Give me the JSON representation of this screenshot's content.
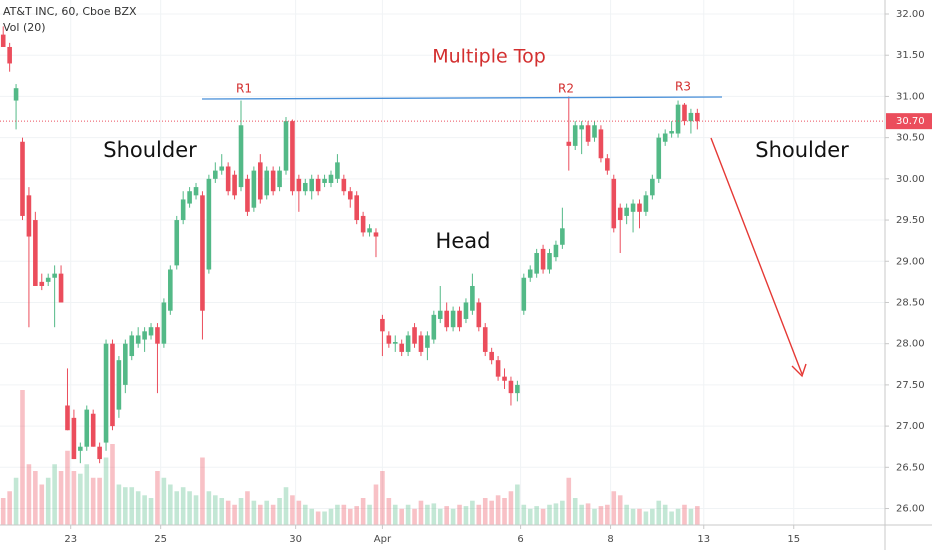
{
  "chart_data": {
    "type": "candlestick",
    "header": "AT&T INC, 60, Cboe BZX",
    "volume_label": "Vol (20)",
    "annotations": {
      "pattern": "Multiple Top",
      "r1": "R1",
      "r2": "R2",
      "r3": "R3",
      "left_shoulder": "Shoulder",
      "head": "Head",
      "right_shoulder": "Shoulder"
    },
    "up_color": "#53b987",
    "down_color": "#eb4d5c",
    "ylim": [
      25.8,
      32.17
    ],
    "yticks": [
      {
        "value": 32,
        "label": "32.00"
      },
      {
        "value": 31.5,
        "label": "31.50"
      },
      {
        "value": 31,
        "label": "31.00"
      },
      {
        "value": 30.5,
        "label": "30.50"
      },
      {
        "value": 30,
        "label": "30.00"
      },
      {
        "value": 29.5,
        "label": "29.50"
      },
      {
        "value": 29,
        "label": "29.00"
      },
      {
        "value": 28.5,
        "label": "28.50"
      },
      {
        "value": 28,
        "label": "28.00"
      },
      {
        "value": 27.5,
        "label": "27.50"
      },
      {
        "value": 27,
        "label": "27.00"
      },
      {
        "value": 26.5,
        "label": "26.50"
      },
      {
        "value": 26,
        "label": "26.00"
      }
    ],
    "xlim": [
      -0.5,
      137.2
    ],
    "xticks": [
      {
        "value": 10.5,
        "label": "23"
      },
      {
        "value": 24.5,
        "label": "25"
      },
      {
        "value": 45.5,
        "label": "30"
      },
      {
        "value": 59,
        "label": "Apr"
      },
      {
        "value": 80.5,
        "label": "6"
      },
      {
        "value": 94.5,
        "label": "8"
      },
      {
        "value": 109,
        "label": "13"
      },
      {
        "value": 123,
        "label": "15"
      }
    ],
    "grid": true,
    "last_price": {
      "value": 30.7,
      "label": "30.70"
    },
    "ohlc": [
      [
        31.75,
        31.85,
        31.6,
        31.6
      ],
      [
        31.6,
        31.65,
        31.3,
        31.4
      ],
      [
        30.95,
        31.15,
        30.6,
        31.1
      ],
      [
        30.45,
        30.5,
        29.5,
        29.55
      ],
      [
        29.8,
        29.9,
        28.2,
        29.3
      ],
      [
        29.5,
        29.6,
        28.7,
        28.7
      ],
      [
        28.75,
        28.85,
        28.65,
        28.7
      ],
      [
        28.75,
        28.85,
        28.7,
        28.8
      ],
      [
        28.8,
        28.95,
        28.2,
        28.85
      ],
      [
        28.85,
        28.95,
        28.5,
        28.5
      ],
      [
        27.25,
        27.7,
        26.95,
        26.95
      ],
      [
        27.1,
        27.2,
        26.6,
        26.6
      ],
      [
        26.7,
        26.8,
        26.55,
        26.75
      ],
      [
        26.75,
        27.25,
        26.7,
        27.2
      ],
      [
        27.15,
        27.2,
        26.75,
        26.75
      ],
      [
        26.75,
        26.8,
        26.55,
        26.6
      ],
      [
        26.8,
        28.05,
        26.7,
        28.0
      ],
      [
        28.0,
        28.05,
        26.95,
        27.0
      ],
      [
        27.2,
        27.85,
        27.1,
        27.8
      ],
      [
        27.5,
        28.05,
        27.4,
        28.0
      ],
      [
        27.85,
        28.15,
        27.8,
        28.1
      ],
      [
        28.0,
        28.2,
        27.95,
        28.1
      ],
      [
        28.05,
        28.2,
        27.9,
        28.15
      ],
      [
        28.1,
        28.25,
        28.05,
        28.2
      ],
      [
        28.2,
        28.25,
        27.4,
        28.0
      ],
      [
        28.0,
        28.55,
        27.95,
        28.5
      ],
      [
        28.4,
        28.95,
        28.35,
        28.9
      ],
      [
        28.95,
        29.55,
        28.9,
        29.5
      ],
      [
        29.5,
        29.85,
        29.45,
        29.75
      ],
      [
        29.7,
        29.9,
        29.65,
        29.85
      ],
      [
        29.8,
        29.95,
        29.75,
        29.9
      ],
      [
        29.8,
        29.85,
        28.05,
        28.4
      ],
      [
        28.9,
        30.05,
        28.85,
        30.0
      ],
      [
        30.0,
        30.2,
        29.95,
        30.1
      ],
      [
        30.1,
        30.3,
        30.05,
        30.15
      ],
      [
        30.15,
        30.2,
        29.8,
        29.85
      ],
      [
        30.05,
        30.1,
        29.75,
        29.8
      ],
      [
        29.9,
        30.95,
        29.85,
        30.65
      ],
      [
        30.0,
        30.05,
        29.55,
        29.6
      ],
      [
        29.65,
        30.15,
        29.6,
        30.1
      ],
      [
        30.2,
        30.3,
        29.7,
        29.75
      ],
      [
        29.8,
        30.15,
        29.75,
        30.1
      ],
      [
        30.1,
        30.15,
        29.8,
        29.85
      ],
      [
        29.9,
        30.15,
        29.85,
        30.1
      ],
      [
        30.1,
        30.75,
        30.05,
        30.7
      ],
      [
        30.7,
        30.72,
        29.8,
        29.85
      ],
      [
        30.0,
        30.05,
        29.6,
        29.85
      ],
      [
        29.85,
        30.0,
        29.8,
        29.95
      ],
      [
        29.85,
        30.05,
        29.75,
        30.0
      ],
      [
        30.0,
        30.05,
        29.8,
        29.85
      ],
      [
        29.95,
        30.05,
        29.9,
        30.0
      ],
      [
        29.95,
        30.1,
        29.9,
        30.05
      ],
      [
        30.0,
        30.3,
        29.95,
        30.2
      ],
      [
        30.0,
        30.05,
        29.8,
        29.85
      ],
      [
        29.85,
        29.9,
        29.65,
        29.75
      ],
      [
        29.8,
        29.85,
        29.45,
        29.5
      ],
      [
        29.55,
        29.6,
        29.3,
        29.35
      ],
      [
        29.35,
        29.45,
        29.3,
        29.4
      ],
      [
        29.35,
        29.4,
        29.05,
        29.3
      ],
      [
        28.3,
        28.35,
        27.85,
        28.15
      ],
      [
        28.1,
        28.15,
        27.95,
        28.0
      ],
      [
        28.0,
        28.1,
        27.9,
        28.02
      ],
      [
        28.0,
        28.05,
        27.85,
        27.9
      ],
      [
        27.9,
        28.15,
        27.85,
        28.1
      ],
      [
        28.2,
        28.25,
        27.95,
        28.0
      ],
      [
        28.1,
        28.15,
        27.85,
        27.9
      ],
      [
        27.95,
        28.15,
        27.8,
        28.1
      ],
      [
        28.05,
        28.4,
        28.0,
        28.35
      ],
      [
        28.3,
        28.7,
        28.25,
        28.4
      ],
      [
        28.4,
        28.5,
        28.15,
        28.2
      ],
      [
        28.2,
        28.45,
        28.15,
        28.4
      ],
      [
        28.4,
        28.45,
        28.15,
        28.2
      ],
      [
        28.3,
        28.55,
        28.25,
        28.5
      ],
      [
        28.4,
        28.85,
        28.35,
        28.7
      ],
      [
        28.5,
        28.55,
        28.15,
        28.2
      ],
      [
        28.2,
        28.25,
        27.85,
        27.9
      ],
      [
        27.9,
        27.95,
        27.75,
        27.8
      ],
      [
        27.8,
        27.85,
        27.55,
        27.6
      ],
      [
        27.6,
        27.7,
        27.45,
        27.55
      ],
      [
        27.55,
        27.6,
        27.25,
        27.4
      ],
      [
        27.4,
        27.55,
        27.3,
        27.5
      ],
      [
        28.4,
        28.85,
        28.35,
        28.8
      ],
      [
        28.8,
        28.95,
        28.75,
        28.9
      ],
      [
        28.85,
        29.15,
        28.8,
        29.1
      ],
      [
        29.15,
        29.2,
        28.85,
        28.9
      ],
      [
        28.9,
        29.15,
        28.85,
        29.1
      ],
      [
        29.05,
        29.25,
        29.0,
        29.2
      ],
      [
        29.2,
        29.65,
        29.15,
        29.4
      ],
      [
        30.45,
        31.0,
        30.1,
        30.4
      ],
      [
        30.4,
        30.7,
        30.35,
        30.65
      ],
      [
        30.6,
        30.7,
        30.3,
        30.65
      ],
      [
        30.65,
        30.7,
        30.4,
        30.45
      ],
      [
        30.5,
        30.7,
        30.45,
        30.65
      ],
      [
        30.6,
        30.65,
        30.2,
        30.25
      ],
      [
        30.25,
        30.3,
        30.05,
        30.1
      ],
      [
        30.0,
        30.05,
        29.35,
        29.4
      ],
      [
        29.65,
        29.7,
        29.1,
        29.5
      ],
      [
        29.55,
        29.7,
        29.45,
        29.65
      ],
      [
        29.6,
        29.75,
        29.35,
        29.7
      ],
      [
        29.7,
        29.75,
        29.4,
        29.6
      ],
      [
        29.6,
        29.85,
        29.55,
        29.8
      ],
      [
        29.8,
        30.05,
        29.75,
        30.0
      ],
      [
        30.0,
        30.55,
        29.95,
        30.5
      ],
      [
        30.45,
        30.6,
        30.4,
        30.55
      ],
      [
        30.55,
        30.7,
        30.5,
        30.58
      ],
      [
        30.55,
        30.95,
        30.5,
        30.9
      ],
      [
        30.9,
        30.92,
        30.65,
        30.7
      ],
      [
        30.7,
        30.85,
        30.55,
        30.8
      ],
      [
        30.8,
        30.85,
        30.6,
        30.7
      ]
    ],
    "volume_lim": [
      0,
      100
    ],
    "volume": [
      20,
      25,
      35,
      100,
      45,
      40,
      30,
      35,
      45,
      40,
      55,
      40,
      38,
      45,
      35,
      35,
      50,
      60,
      30,
      28,
      28,
      25,
      22,
      20,
      40,
      35,
      30,
      25,
      28,
      25,
      22,
      50,
      25,
      22,
      20,
      18,
      15,
      20,
      25,
      18,
      15,
      18,
      15,
      20,
      28,
      22,
      18,
      15,
      12,
      10,
      10,
      12,
      15,
      15,
      12,
      14,
      20,
      15,
      30,
      40,
      20,
      15,
      12,
      15,
      12,
      18,
      15,
      16,
      12,
      14,
      12,
      15,
      14,
      18,
      15,
      20,
      18,
      22,
      20,
      25,
      30,
      15,
      12,
      14,
      12,
      15,
      16,
      18,
      35,
      20,
      15,
      16,
      12,
      14,
      15,
      25,
      22,
      15,
      12,
      12,
      10,
      12,
      18,
      15,
      10,
      12,
      15,
      12,
      14
    ]
  }
}
